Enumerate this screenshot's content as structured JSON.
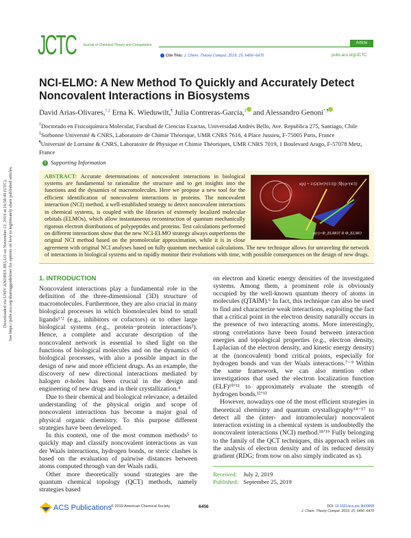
{
  "sidebar_notice": {
    "line1": "Downloaded via UNIV ANDRES BELLO on November 12, 2019 at 16:58:49 (UTC).",
    "line2": "See https://pubs.acs.org/sharingguidelines for options on how to legitimately share published articles."
  },
  "header": {
    "logo": "JCTC",
    "journal_name": "Journal of Chemical Theory and Computation",
    "article_type": "Article",
    "cite_label": "Cite This:",
    "cite_ref": "J. Chem. Theory Comput. 2019, 15, 6456−6470",
    "url": "pubs.acs.org/JCTC"
  },
  "title": "NCI-ELMO: A New Method To Quickly and Accurately Detect Noncovalent Interactions in Biosystems",
  "authors": [
    {
      "name": "David Arias-Olivares,",
      "marks": "†,‡"
    },
    {
      "name": "Erna K. Wieduwilt,",
      "marks": "¶"
    },
    {
      "name": "Julia Contreras-García,",
      "marks": "‡"
    },
    {
      "name": "and Alessandro Genoni",
      "marks": "*,¶"
    }
  ],
  "affiliations": [
    {
      "mark": "†",
      "text": "Doctorado en Fisicoquímica Molecular, Facultad de Ciencias Exactas, Universidad Andrés Bello, Ave. Republica 275, Santiago, Chile"
    },
    {
      "mark": "‡",
      "text": "Sorbonne Université & CNRS, Laboratoire de Chimie Théorique, UMR CNRS 7616, 4 Place Jussieu, F-75005 Paris, France"
    },
    {
      "mark": "¶",
      "text": "Université de Lorraine & CNRS, Laboratoire de Physique et Chimie Théoriques, UMR CNRS 7019, 1 Boulevard Arago, F-57078 Metz, France"
    }
  ],
  "supporting_information": "Supporting Information",
  "abstract": {
    "label": "ABSTRACT:",
    "text": "Accurate determinations of noncovalent interactions in biological systems are fundamental to rationalize the structure and to get insights into the functions and the dynamics of macromolecules. Here we propose a new tool for the efficient identification of noncovalent interactions in proteins. The noncovalent interaction (NCI) method, a well-established strategy to detect noncovalent interactions in chemical systems, is coupled with the libraries of extremely localized molecular orbitals (ELMOs), which allow instantaneous reconstruction of quantum mechanically rigorous electron distributions of polypeptides and proteins. Test calculations performed on different interactions show that the new NCI-ELMO strategy always outperforms the original NCI method based on the promolecular approximation, while it is in close agreement with original NCI analyses based on fully quantum mechanical calculations. The new technique allows for unraveling the network of interactions in biological systems and to rapidly monitor their evolutions with time, with possible consequences on the design of new drugs.",
    "graphic_eq1": "s(ρ) = 1/(2(3π²)^(1/3)) |∇ρ|/ρ^(4/3)",
    "graphic_eq2": "ρ(r)=Φ_ELMO† R Φ_ELMO"
  },
  "section": {
    "heading": "1. INTRODUCTION",
    "left_paragraphs": [
      "Noncovalent interactions play a fundamental role in the definition of the three-dimensional (3D) structure of macromolecules. Furthermore, they are also crucial in many biological processes in which biomolecules bind to small ligands¹ʼ² (e.g., inhibitors or cofactors) or to other large biological systems (e.g., protein−protein interactions³). Hence, a complete and accurate description of the noncovalent network is essential to shed light on the functions of biological molecules and on the dynamics of biological processes, with also a possible impact in the design of new and more efficient drugs. As an example, the discovery of new directional interactions mediated by halogen σ-holes has been crucial in the design and engineering of new drugs and in their crystallization.⁴",
      "Due to their chemical and biological relevance, a detailed understanding of the physical origin and scope of noncovalent interactions has become a major goal of physical organic chemistry. To this purpose different strategies have been developed.",
      "In this context, one of the most common methods⁵ to quickly map and classify noncovalent interactions as van der Waals interactions, hydrogen bonds, or steric clashes is based on the evaluation of pairwise distances between atoms computed through van der Waals radii.",
      "Other more theoretically sound strategies are the quantum chemical topology (QCT) methods, namely strategies based"
    ],
    "right_paragraphs": [
      "on electron and kinetic energy densities of the investigated systems. Among them, a prominent role is obviously occupied by the well-known quantum theory of atoms in molecules (QTAIM).⁶ In fact, this technique can also be used to find and characterize weak interactions, exploiting the fact that a critical point in the electron density naturally occurs in the presence of two interacting atoms. More interestingly, strong correlations have been found between interaction energies and topological properties (e.g., electron density, Laplacian of the electron density, and kinetic energy density) at the (noncovalent) bond critical points, especially for hydrogen bonds and van der Waals interactions.⁷⁻⁹ Within the same framework, we can also mention other investigations that used the electron localization function (ELF)¹⁰ʼ¹¹ to approximately evaluate the strength of hydrogen bonds.¹²ʼ¹³",
      "However, nowadays one of the most efficient strategies in theoretical chemistry and quantum crystallography¹⁴⁻¹⁷ to detect all the (inter- and intramolecular) noncovalent interaction existing in a chemical system is undoubtedly the noncovalent interactions (NCI) method.¹⁸ʼ¹⁹ Fully belonging to the family of the QCT techniques, this approach relies on the analysis of electron density and of its reduced density gradient (RDG; from now on also simply indicated as s)."
    ]
  },
  "dates": {
    "received_label": "Received:",
    "received": "July 2, 2019",
    "published_label": "Published:",
    "published": "September 25, 2019"
  },
  "footer": {
    "publisher": "ACS Publications",
    "copyright": "© 2019 American Chemical Society",
    "page_number": "6456",
    "doi_label": "DOI:",
    "doi": "10.1021/acs.jctc.9b00658",
    "citation": "J. Chem. Theory Comput. 2019, 15, 6456−6470"
  },
  "colors": {
    "brand_green": "#3f9b2f",
    "link_blue": "#2355c8",
    "abstract_bg": "#fdf6d8"
  }
}
